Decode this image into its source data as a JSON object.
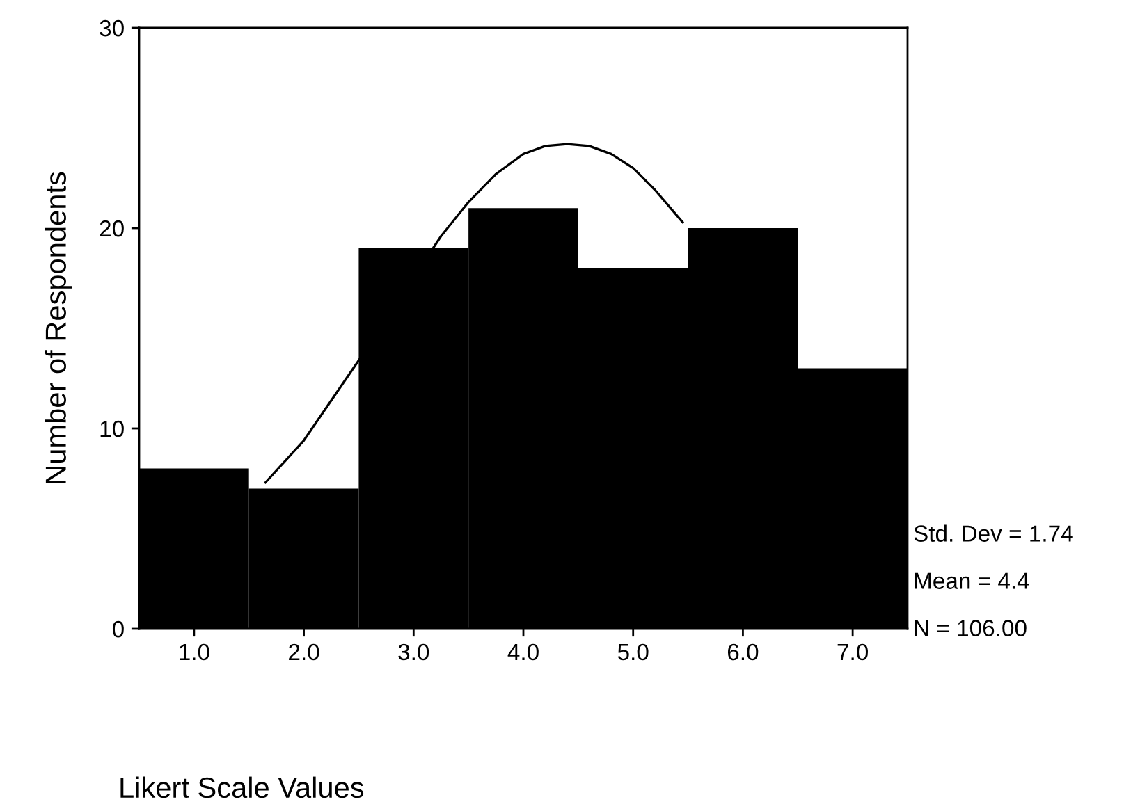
{
  "chart_data": {
    "type": "histogram",
    "xlabel": "Likert Scale Values",
    "ylabel": "Number of Respondents",
    "bins": [
      0.5,
      1.5,
      2.5,
      3.5,
      4.5,
      5.5,
      6.5,
      7.5
    ],
    "values": [
      8,
      7,
      19,
      21,
      18,
      20,
      13
    ],
    "color": "#000000",
    "xlim": [
      0.5,
      7.5
    ],
    "xticks": [
      {
        "value": 1,
        "label": "1.0"
      },
      {
        "value": 2,
        "label": "2.0"
      },
      {
        "value": 3,
        "label": "3.0"
      },
      {
        "value": 4,
        "label": "4.0"
      },
      {
        "value": 5,
        "label": "5.0"
      },
      {
        "value": 6,
        "label": "6.0"
      },
      {
        "value": 7,
        "label": "7.0"
      }
    ],
    "ylim": [
      0,
      30
    ],
    "yticks": [
      0,
      10,
      20,
      30
    ],
    "grid": false,
    "legend": false,
    "series": [
      {
        "type": "line",
        "color": "#000000",
        "x": [
          1.65,
          2.0,
          2.5,
          3.25,
          3.5,
          3.75,
          4.0,
          4.2,
          4.4,
          4.6,
          4.8,
          5.0,
          5.2,
          5.45
        ],
        "values": [
          7.3,
          9.4,
          13.4,
          19.6,
          21.3,
          22.7,
          23.7,
          24.1,
          24.2,
          24.1,
          23.7,
          23.0,
          21.9,
          20.3
        ]
      }
    ],
    "annotations": [
      "Std. Dev = 1.74",
      "Mean = 4.4",
      "N = 106.00"
    ]
  }
}
